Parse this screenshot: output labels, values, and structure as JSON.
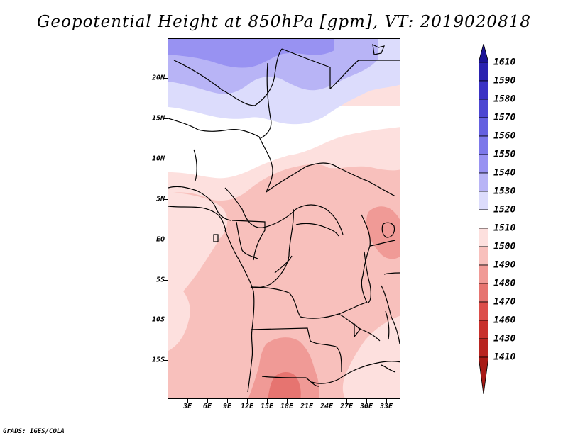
{
  "title": "Geopotential Height at 850hPa [gpm], VT: 2019020818",
  "credit": "GrADS: IGES/COLA",
  "axes": {
    "lat_labels": [
      "20N",
      "15N",
      "10N",
      "5N",
      "EQ",
      "5S",
      "10S",
      "15S"
    ],
    "lon_labels": [
      "3E",
      "6E",
      "9E",
      "12E",
      "15E",
      "18E",
      "21E",
      "24E",
      "27E",
      "30E",
      "33E"
    ]
  },
  "colorbar": {
    "labels": [
      "1610",
      "1590",
      "1580",
      "1570",
      "1560",
      "1550",
      "1540",
      "1530",
      "1520",
      "1510",
      "1500",
      "1490",
      "1480",
      "1470",
      "1460",
      "1430",
      "1410"
    ],
    "colors": {
      "c1610": "#1c1496",
      "c1590": "#2a22b0",
      "c1580": "#3a32c4",
      "c1570": "#4c46d2",
      "c1560": "#6460e0",
      "c1550": "#7c78ea",
      "c1540": "#9892f2",
      "c1530": "#b8b4f6",
      "c1520": "#dcdcfc",
      "c1510": "#ffffff",
      "c1500": "#fde0de",
      "c1490": "#f8c0bc",
      "c1480": "#f09a96",
      "c1470": "#e67470",
      "c1460": "#dc4e4a",
      "c1430": "#c8302c",
      "c1410": "#a81a16"
    }
  }
}
